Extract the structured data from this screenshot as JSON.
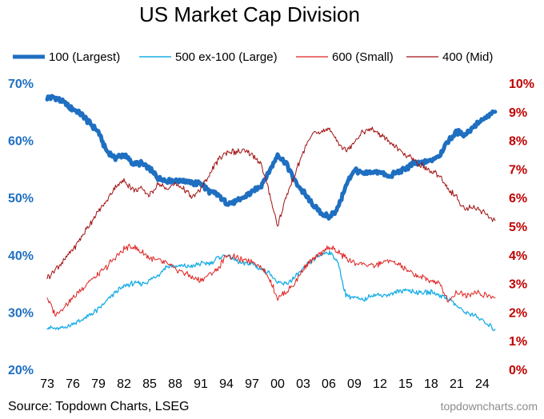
{
  "chart_data": {
    "type": "line",
    "title": "US Market Cap Division",
    "source": "Source: Topdown Charts, LSEG",
    "watermark": "topdowncharts.com",
    "x_tick_labels": [
      "73",
      "76",
      "79",
      "82",
      "85",
      "88",
      "91",
      "94",
      "97",
      "00",
      "03",
      "06",
      "09",
      "12",
      "15",
      "18",
      "21",
      "24"
    ],
    "x_tick_years": [
      1973,
      1976,
      1979,
      1982,
      1985,
      1988,
      1991,
      1994,
      1997,
      2000,
      2003,
      2006,
      2009,
      2012,
      2015,
      2018,
      2021,
      2024
    ],
    "xlim": [
      1973,
      2025.6
    ],
    "left_axis": {
      "ylim": [
        20,
        70
      ],
      "ticks": [
        20,
        30,
        40,
        50,
        60,
        70
      ],
      "tick_labels": [
        "20%",
        "30%",
        "40%",
        "50%",
        "60%",
        "70%"
      ],
      "color": "#1f6fc1"
    },
    "right_axis": {
      "ylim": [
        0,
        10
      ],
      "ticks": [
        0,
        1,
        2,
        3,
        4,
        5,
        6,
        7,
        8,
        9,
        10
      ],
      "tick_labels": [
        "0%",
        "1%",
        "2%",
        "3%",
        "4%",
        "5%",
        "6%",
        "7%",
        "8%",
        "9%",
        "10%"
      ],
      "color": "#c00000"
    },
    "series": [
      {
        "name": "100 (Largest)",
        "axis": "left",
        "color": "#1f6fc1",
        "width": 5,
        "x": [
          1973,
          1974,
          1975,
          1976,
          1977,
          1978,
          1979,
          1980,
          1981,
          1982,
          1983,
          1984,
          1985,
          1986,
          1987,
          1988,
          1989,
          1990,
          1991,
          1992,
          1993,
          1994,
          1995,
          1996,
          1997,
          1998,
          1999,
          2000,
          2001,
          2002,
          2003,
          2004,
          2005,
          2006,
          2007,
          2008,
          2009,
          2010,
          2011,
          2012,
          2013,
          2014,
          2015,
          2016,
          2017,
          2018,
          2019,
          2020,
          2021,
          2022,
          2023,
          2024,
          2025.5
        ],
        "values": [
          67.5,
          67.5,
          66.5,
          65.5,
          64.5,
          63,
          61.5,
          58,
          57,
          57.5,
          56,
          56,
          55,
          53.5,
          53,
          53,
          53,
          52.5,
          52.5,
          51,
          50.5,
          49,
          49.2,
          50,
          51,
          52,
          54.5,
          57.5,
          56,
          53,
          51,
          49,
          47.5,
          46.5,
          48,
          52,
          55,
          54,
          54.5,
          54.5,
          53.5,
          54.5,
          55,
          56,
          56,
          56.5,
          57.5,
          60,
          61.5,
          61,
          62.5,
          63.5,
          65
        ]
      },
      {
        "name": "500 ex-100 (Large)",
        "axis": "left",
        "color": "#19aee6",
        "width": 1.3,
        "x": [
          1973,
          1974,
          1975,
          1976,
          1977,
          1978,
          1979,
          1980,
          1981,
          1982,
          1983,
          1984,
          1985,
          1986,
          1987,
          1988,
          1989,
          1990,
          1991,
          1992,
          1993,
          1994,
          1995,
          1996,
          1997,
          1998,
          1999,
          2000,
          2001,
          2002,
          2003,
          2004,
          2005,
          2006,
          2007,
          2008,
          2009,
          2010,
          2011,
          2012,
          2013,
          2014,
          2015,
          2016,
          2017,
          2018,
          2019,
          2020,
          2021,
          2022,
          2023,
          2024,
          2025.5
        ],
        "values": [
          27.5,
          27,
          27.3,
          28,
          28.5,
          29.5,
          30.5,
          32,
          33.5,
          34.5,
          35,
          35,
          35.5,
          36.5,
          38,
          38,
          38,
          38,
          38.5,
          38.5,
          39.5,
          40,
          39,
          38.5,
          38.5,
          37.5,
          37,
          35,
          35,
          36,
          37.5,
          39,
          40,
          40.5,
          39,
          33,
          32.5,
          32,
          33,
          33,
          33,
          33.5,
          34,
          33.5,
          33.5,
          33.5,
          33,
          32.5,
          31,
          30,
          29.5,
          28.5,
          27
        ]
      },
      {
        "name": "600 (Small)",
        "axis": "right",
        "color": "#e02020",
        "width": 1,
        "x": [
          1973,
          1974,
          1975,
          1976,
          1977,
          1978,
          1979,
          1980,
          1981,
          1982,
          1983,
          1984,
          1985,
          1986,
          1987,
          1988,
          1989,
          1990,
          1991,
          1992,
          1993,
          1994,
          1995,
          1996,
          1997,
          1998,
          1999,
          2000,
          2001,
          2002,
          2003,
          2004,
          2005,
          2006,
          2007,
          2008,
          2009,
          2010,
          2011,
          2012,
          2013,
          2014,
          2015,
          2016,
          2017,
          2018,
          2019,
          2020,
          2021,
          2022,
          2023,
          2024,
          2025.5
        ],
        "values": [
          2.5,
          1.9,
          2.2,
          2.5,
          2.8,
          3.1,
          3.3,
          3.6,
          3.9,
          4.2,
          4.3,
          4.1,
          3.9,
          3.8,
          3.7,
          3.5,
          3.4,
          3.2,
          3.1,
          3.3,
          3.5,
          4,
          3.9,
          3.8,
          3.8,
          3.6,
          3.2,
          2.5,
          2.7,
          3,
          3.5,
          3.8,
          4,
          4.3,
          4.1,
          3.9,
          3.7,
          3.7,
          3.6,
          3.7,
          3.8,
          3.7,
          3.5,
          3.3,
          3.2,
          3.1,
          3.0,
          2.4,
          2.7,
          2.6,
          2.7,
          2.6,
          2.5
        ]
      },
      {
        "name": "400 (Mid)",
        "axis": "right",
        "color": "#a01010",
        "width": 1,
        "x": [
          1973,
          1974,
          1975,
          1976,
          1977,
          1978,
          1979,
          1980,
          1981,
          1982,
          1983,
          1984,
          1985,
          1986,
          1987,
          1988,
          1989,
          1990,
          1991,
          1992,
          1993,
          1994,
          1995,
          1996,
          1997,
          1998,
          1999,
          2000,
          2001,
          2002,
          2003,
          2004,
          2005,
          2006,
          2007,
          2008,
          2009,
          2010,
          2011,
          2012,
          2013,
          2014,
          2015,
          2016,
          2017,
          2018,
          2019,
          2020,
          2021,
          2022,
          2023,
          2024,
          2025.5
        ],
        "values": [
          3.2,
          3.5,
          3.8,
          4.2,
          4.6,
          5.1,
          5.5,
          5.9,
          6.4,
          6.6,
          6.3,
          6.3,
          6.1,
          6.5,
          6.3,
          6.5,
          6.3,
          6.0,
          6.3,
          6.8,
          7.3,
          7.6,
          7.6,
          7.6,
          7.5,
          7.2,
          6.2,
          5.0,
          6.0,
          6.8,
          7.6,
          8.2,
          8.3,
          8.4,
          8.0,
          7.6,
          8.0,
          8.3,
          8.4,
          8.2,
          8.0,
          7.7,
          7.5,
          7.3,
          7.1,
          6.9,
          6.8,
          6.3,
          6.0,
          5.6,
          5.7,
          5.5,
          5.2
        ]
      }
    ]
  }
}
